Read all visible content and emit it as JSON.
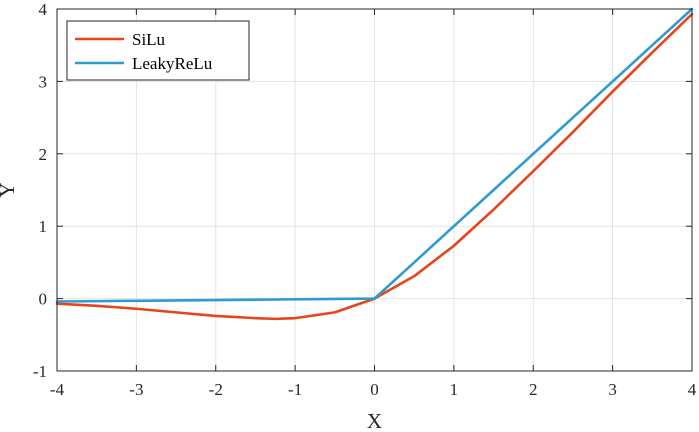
{
  "chart_data": {
    "type": "line",
    "xlabel": "X",
    "ylabel": "Y",
    "xlim": [
      -4,
      4
    ],
    "ylim": [
      -1,
      4
    ],
    "xticks": [
      -4,
      -3,
      -2,
      -1,
      0,
      1,
      2,
      3,
      4
    ],
    "yticks": [
      -1,
      0,
      1,
      2,
      3,
      4
    ],
    "xtick_labels": [
      "-4",
      "-3",
      "-2",
      "-1",
      "0",
      "1",
      "2",
      "3",
      "4"
    ],
    "ytick_labels": [
      "-1",
      "0",
      "1",
      "2",
      "3",
      "4"
    ],
    "grid": true,
    "legend_position": "top-left",
    "x": [
      -4,
      -3.5,
      -3,
      -2.5,
      -2,
      -1.5,
      -1.25,
      -1,
      -0.5,
      0,
      0.5,
      1,
      1.5,
      2,
      2.5,
      3,
      3.5,
      4
    ],
    "series": [
      {
        "name": "SiLu",
        "color": "#e8431a",
        "values": [
          -0.07,
          -0.1,
          -0.14,
          -0.19,
          -0.24,
          -0.27,
          -0.28,
          -0.27,
          -0.19,
          0,
          0.31,
          0.73,
          1.23,
          1.76,
          2.3,
          2.86,
          3.4,
          3.93
        ]
      },
      {
        "name": "LeakyReLu",
        "color": "#2e9bd0",
        "values": [
          -0.04,
          -0.035,
          -0.03,
          -0.025,
          -0.02,
          -0.015,
          -0.0125,
          -0.01,
          -0.005,
          0,
          0.5,
          1,
          1.5,
          2,
          2.5,
          3,
          3.5,
          4
        ]
      }
    ]
  }
}
